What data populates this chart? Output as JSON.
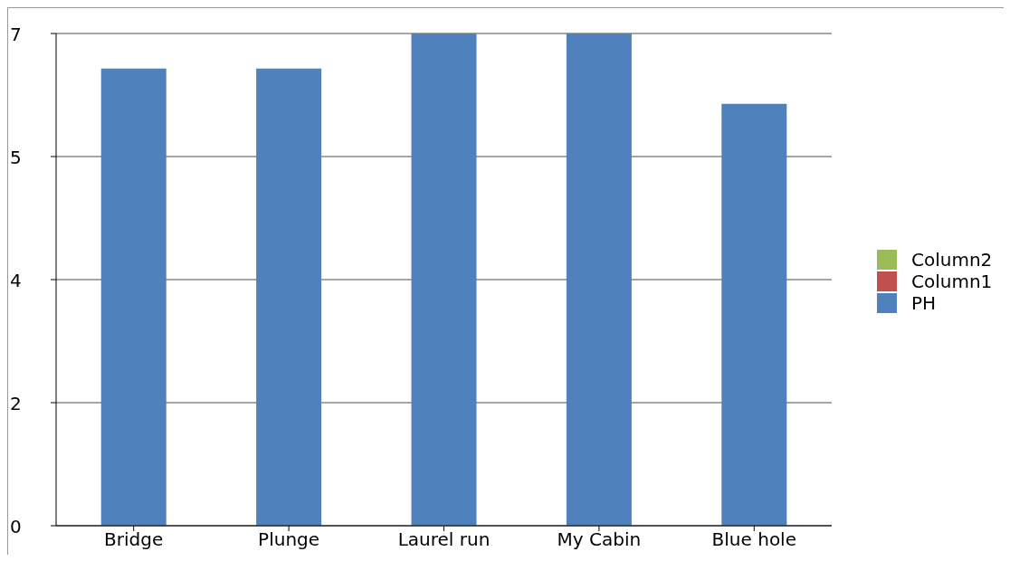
{
  "chart_data": {
    "type": "bar",
    "categories": [
      "Bridge",
      "Plunge",
      "Laurel run",
      "My Cabin",
      "Blue hole"
    ],
    "series": [
      {
        "name": "PH",
        "color": "#4f81bd",
        "values": [
          6.5,
          6.5,
          7,
          7,
          6
        ]
      },
      {
        "name": "Column1",
        "color": "#c0504d",
        "values": [
          null,
          null,
          null,
          null,
          null
        ]
      },
      {
        "name": "Column2",
        "color": "#9bbb59",
        "values": [
          null,
          null,
          null,
          null,
          null
        ]
      }
    ],
    "stacked": true,
    "ylim": [
      0,
      7
    ],
    "yticks": [
      0,
      {
        "value": 1.75,
        "label": "2"
      },
      {
        "value": 3.5,
        "label": "4"
      },
      {
        "value": 5.25,
        "label": "5"
      },
      7
    ],
    "grid": "y",
    "legend": "right"
  }
}
